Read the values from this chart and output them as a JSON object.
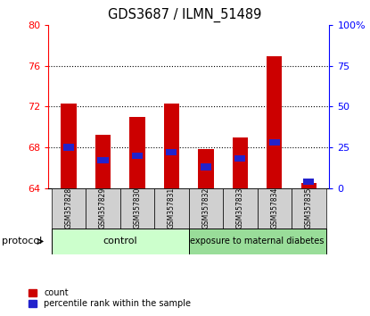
{
  "title": "GDS3687 / ILMN_51489",
  "samples": [
    "GSM357828",
    "GSM357829",
    "GSM357830",
    "GSM357831",
    "GSM357832",
    "GSM357833",
    "GSM357834",
    "GSM357835"
  ],
  "count_values": [
    72.3,
    69.2,
    71.0,
    72.3,
    67.8,
    69.0,
    77.0,
    64.5
  ],
  "percentile_values": [
    25,
    17,
    20,
    22,
    13,
    18,
    28,
    4
  ],
  "baseline": 64,
  "ylim_left": [
    64,
    80
  ],
  "ylim_right": [
    0,
    100
  ],
  "yticks_left": [
    64,
    68,
    72,
    76,
    80
  ],
  "yticks_right": [
    0,
    25,
    50,
    75,
    100
  ],
  "ytick_labels_right": [
    "0",
    "25",
    "50",
    "75",
    "100%"
  ],
  "bar_color": "#cc0000",
  "blue_color": "#2222cc",
  "bar_width": 0.45,
  "control_color": "#ccffcc",
  "diabetes_color": "#99dd99",
  "ticklabel_bg": "#d0d0d0",
  "protocol_label": "protocol",
  "group1_label": "control",
  "group2_label": "exposure to maternal diabetes",
  "legend_count": "count",
  "legend_pct": "percentile rank within the sample",
  "n_control": 4,
  "n_diabetes": 4,
  "grid_yticks": [
    68,
    72,
    76
  ]
}
